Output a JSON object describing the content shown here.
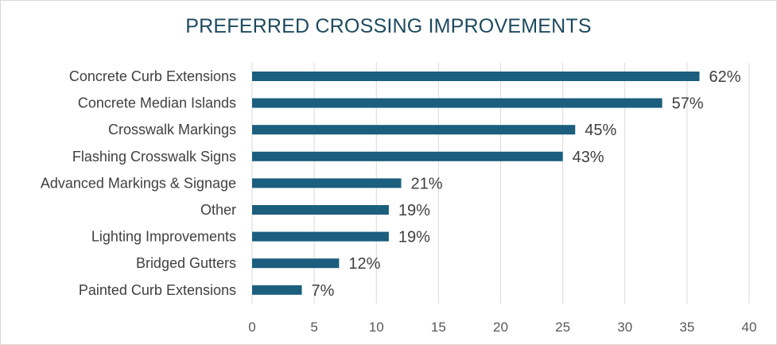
{
  "chart_data": {
    "type": "bar",
    "orientation": "horizontal",
    "title": "PREFERRED CROSSING IMPROVEMENTS",
    "categories": [
      "Concrete Curb Extensions",
      "Concrete Median Islands",
      "Crosswalk Markings",
      "Flashing Crosswalk Signs",
      "Advanced Markings & Signage",
      "Other",
      "Lighting Improvements",
      "Bridged Gutters",
      "Painted Curb Extensions"
    ],
    "values": [
      36,
      33,
      26,
      25,
      12,
      11,
      11,
      7,
      4
    ],
    "data_labels": [
      "62%",
      "57%",
      "45%",
      "43%",
      "21%",
      "19%",
      "19%",
      "12%",
      "7%"
    ],
    "xlim": [
      0,
      40
    ],
    "xticks": [
      0,
      5,
      10,
      15,
      20,
      25,
      30,
      35,
      40
    ],
    "xlabel": "",
    "ylabel": "",
    "grid": "vertical",
    "colors": {
      "bar": "#1b5e7e",
      "title": "#1e4a5f",
      "text": "#404040",
      "grid": "#d9d9d9"
    }
  }
}
